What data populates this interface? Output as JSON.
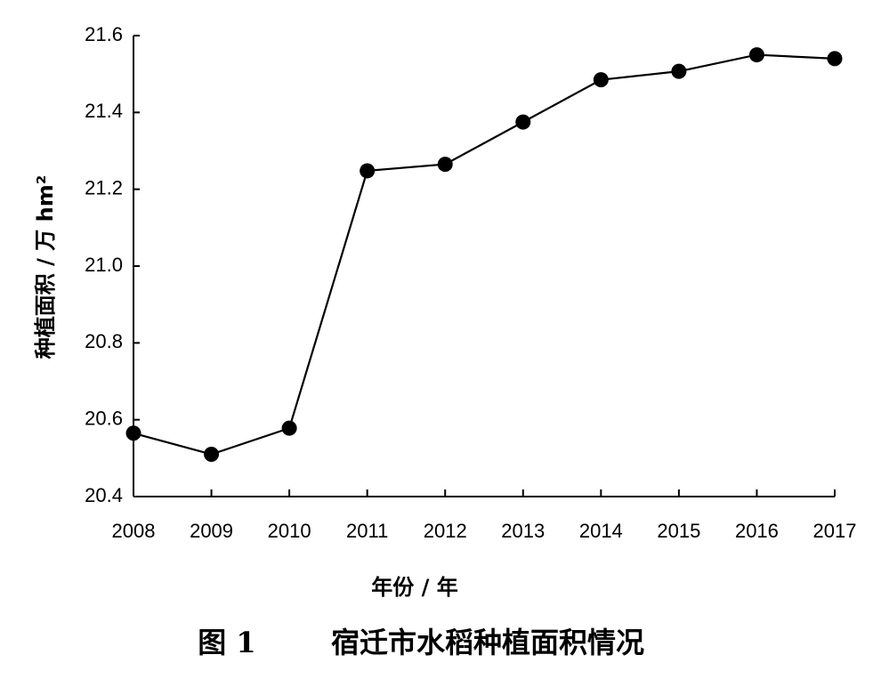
{
  "chart_data": {
    "type": "line",
    "x": [
      "2008",
      "2009",
      "2010",
      "2011",
      "2012",
      "2013",
      "2014",
      "2015",
      "2016",
      "2017"
    ],
    "series": [
      {
        "values": [
          20.565,
          20.51,
          20.578,
          21.248,
          21.265,
          21.375,
          21.485,
          21.507,
          21.55,
          21.54
        ]
      }
    ],
    "xlabel": "年份 / 年",
    "ylabel": "种植面积 / 万 hm²",
    "ylim": [
      20.4,
      21.6
    ],
    "yticks": [
      "20.4",
      "20.6",
      "20.8",
      "21.0",
      "21.2",
      "21.4",
      "21.6"
    ],
    "grid": false,
    "legend": "none",
    "line_color": "#000000",
    "marker_color": "#000000"
  },
  "caption": {
    "label": "图 1",
    "text": "宿迁市水稻种植面积情况"
  }
}
